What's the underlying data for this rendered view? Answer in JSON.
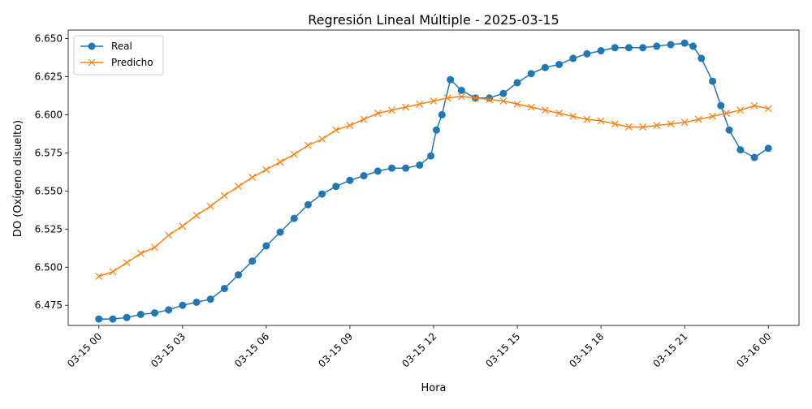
{
  "chart_data": {
    "type": "line",
    "title": "Regresión Lineal Múltiple - 2025-03-15",
    "xlabel": "Hora",
    "ylabel": "DO (Oxígeno disuelto)",
    "x_axis": "hours since 2025-03-15 00:00",
    "xlim": [
      -1.1,
      25.1
    ],
    "ylim": [
      6.4618,
      6.6556
    ],
    "x_ticks": [
      0,
      3,
      6,
      9,
      12,
      15,
      18,
      21,
      24
    ],
    "x_tick_labels": [
      "03-15 00",
      "03-15 03",
      "03-15 06",
      "03-15 09",
      "03-15 12",
      "03-15 15",
      "03-15 18",
      "03-15 21",
      "03-16 00"
    ],
    "y_ticks": [
      6.475,
      6.5,
      6.525,
      6.55,
      6.575,
      6.6,
      6.625,
      6.65
    ],
    "y_tick_labels": [
      "6.475",
      "6.500",
      "6.525",
      "6.550",
      "6.575",
      "6.600",
      "6.625",
      "6.650"
    ],
    "legend_position": "top-left",
    "series": [
      {
        "name": "Real",
        "color": "#1f77b4",
        "marker": "circle",
        "x": [
          0,
          0.5,
          1,
          1.5,
          2,
          2.5,
          3,
          3.5,
          4,
          4.5,
          5,
          5.5,
          6,
          6.5,
          7,
          7.5,
          8,
          8.5,
          9,
          9.5,
          10,
          10.5,
          11,
          11.5,
          11.9,
          12.1,
          12.3,
          12.6,
          13,
          13.5,
          14,
          14.5,
          15,
          15.5,
          16,
          16.5,
          17,
          17.5,
          18,
          18.5,
          19,
          19.5,
          20,
          20.5,
          21,
          21.3,
          21.6,
          22,
          22.3,
          22.6,
          23,
          23.5,
          24
        ],
        "y": [
          6.466,
          6.466,
          6.467,
          6.469,
          6.47,
          6.472,
          6.475,
          6.477,
          6.479,
          6.486,
          6.495,
          6.504,
          6.514,
          6.523,
          6.532,
          6.541,
          6.548,
          6.553,
          6.557,
          6.56,
          6.563,
          6.565,
          6.565,
          6.567,
          6.573,
          6.59,
          6.6,
          6.623,
          6.616,
          6.611,
          6.611,
          6.614,
          6.621,
          6.627,
          6.631,
          6.633,
          6.637,
          6.64,
          6.642,
          6.644,
          6.644,
          6.644,
          6.645,
          6.646,
          6.647,
          6.645,
          6.637,
          6.622,
          6.606,
          6.59,
          6.577,
          6.572,
          6.578
        ]
      },
      {
        "name": "Predicho",
        "color": "#ff7f0e",
        "marker": "x",
        "x": [
          0,
          0.5,
          1,
          1.5,
          2,
          2.5,
          3,
          3.5,
          4,
          4.5,
          5,
          5.5,
          6,
          6.5,
          7,
          7.5,
          8,
          8.5,
          9,
          9.5,
          10,
          10.5,
          11,
          11.5,
          12,
          12.5,
          13,
          13.5,
          14,
          14.5,
          15,
          15.5,
          16,
          16.5,
          17,
          17.5,
          18,
          18.5,
          19,
          19.5,
          20,
          20.5,
          21,
          21.5,
          22,
          22.5,
          23,
          23.5,
          24
        ],
        "y": [
          6.494,
          6.497,
          6.503,
          6.509,
          6.513,
          6.521,
          6.527,
          6.534,
          6.54,
          6.547,
          6.553,
          6.559,
          6.564,
          6.569,
          6.574,
          6.58,
          6.584,
          6.59,
          6.593,
          6.597,
          6.601,
          6.603,
          6.605,
          6.607,
          6.609,
          6.611,
          6.612,
          6.611,
          6.61,
          6.609,
          6.607,
          6.605,
          6.603,
          6.601,
          6.599,
          6.597,
          6.596,
          6.594,
          6.592,
          6.592,
          6.593,
          6.594,
          6.595,
          6.597,
          6.599,
          6.601,
          6.603,
          6.606,
          6.604
        ]
      }
    ]
  }
}
